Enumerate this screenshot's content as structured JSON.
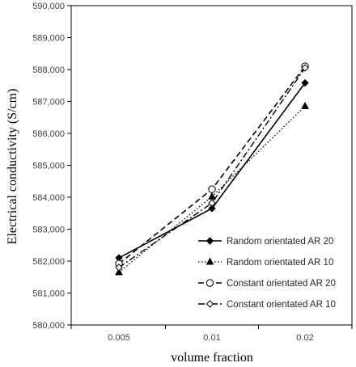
{
  "chart_data": {
    "type": "line",
    "title": "",
    "xlabel": "volume fraction",
    "ylabel": "Electrical conductivity (S/cm)",
    "categories": [
      "0.005",
      "0.01",
      "0.02"
    ],
    "ylim": [
      580000,
      590000
    ],
    "yticks": [
      580000,
      581000,
      582000,
      583000,
      584000,
      585000,
      586000,
      587000,
      588000,
      589000,
      590000
    ],
    "ytick_labels": [
      "580,000",
      "581,000",
      "582,000",
      "583,000",
      "584,000",
      "585,000",
      "586,000",
      "587,000",
      "588,000",
      "589,000",
      "590,000"
    ],
    "grid": false,
    "legend_position": "bottom-right",
    "series": [
      {
        "name": "Random orientated AR 20",
        "values": [
          582100,
          583650,
          587580
        ],
        "marker": "diamond-filled",
        "dash": "solid",
        "color": "#000000"
      },
      {
        "name": "Random orientated AR 10",
        "values": [
          581650,
          584020,
          586850
        ],
        "marker": "triangle-filled",
        "dash": "dotted",
        "color": "#000000"
      },
      {
        "name": "Constant orientated AR 20",
        "values": [
          581920,
          584250,
          588100
        ],
        "marker": "circle-open",
        "dash": "dashed",
        "color": "#000000"
      },
      {
        "name": "Constant orientated AR 10",
        "values": [
          581800,
          583820,
          588050
        ],
        "marker": "diamond-open",
        "dash": "dashdot",
        "color": "#000000"
      }
    ]
  }
}
